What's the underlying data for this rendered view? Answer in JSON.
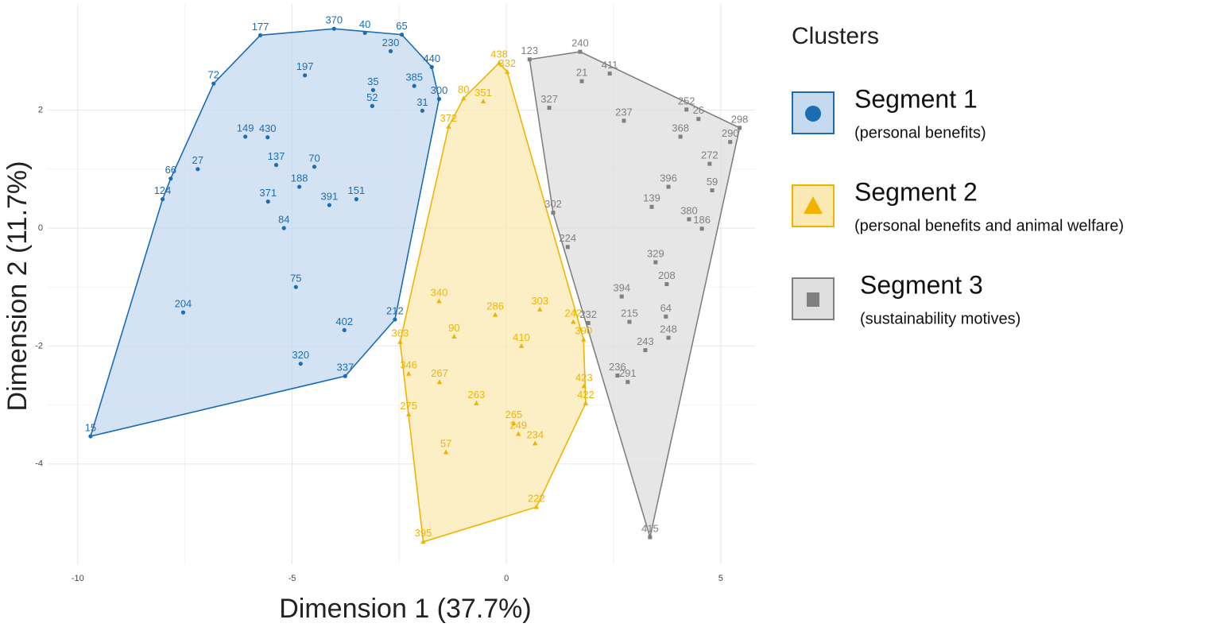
{
  "chart_data": {
    "type": "cluster-scatter",
    "x_label": "Dimension 1 (37.7%)",
    "y_label": "Dimension 2 (11.7%)",
    "legend_title": "Clusters",
    "xlim": [
      -10.7,
      5.8
    ],
    "ylim": [
      -5.7,
      3.8
    ],
    "xticks": [
      -10,
      -5,
      0,
      5
    ],
    "yticks": [
      -4,
      -2,
      0,
      2
    ],
    "grid": true,
    "series": [
      {
        "name": "Segment 1",
        "description": "(personal benefits)",
        "color": "#1a6db5",
        "fill": "#c6daef",
        "marker": "circle",
        "labels": [
          "15",
          "204",
          "124",
          "66",
          "27",
          "72",
          "177",
          "370",
          "40",
          "65",
          "230",
          "440",
          "197",
          "35",
          "149",
          "430",
          "137",
          "371",
          "188",
          "84",
          "391",
          "151",
          "75",
          "320",
          "337",
          "402",
          "385",
          "300",
          "31",
          "52",
          "70",
          "212"
        ],
        "x": [
          -9.7,
          -7.54,
          -8.02,
          -7.83,
          -7.2,
          -6.83,
          -5.74,
          -4.02,
          -3.3,
          -2.44,
          -2.7,
          -1.74,
          -4.7,
          -3.11,
          -6.09,
          -5.57,
          -5.37,
          -5.56,
          -4.83,
          -5.19,
          -4.13,
          -3.5,
          -4.91,
          -4.8,
          -3.76,
          -3.78,
          -2.15,
          -1.57,
          -1.96,
          -3.13,
          -4.48,
          -2.6
        ],
        "values": [
          -3.53,
          -1.43,
          0.49,
          0.84,
          1.0,
          2.45,
          3.27,
          3.38,
          3.31,
          3.28,
          3.0,
          2.73,
          2.59,
          2.34,
          1.55,
          1.54,
          1.07,
          0.45,
          0.7,
          0,
          0.39,
          0.49,
          -1.0,
          -2.3,
          -2.51,
          -1.73,
          2.41,
          2.19,
          1.99,
          2.07,
          1.04,
          -1.55
        ]
      },
      {
        "name": "Segment 2",
        "description": "(personal benefits and animal welfare)",
        "color": "#f0b400",
        "fill": "#fbe9b3",
        "marker": "triangle",
        "labels": [
          "395",
          "222",
          "234",
          "249",
          "265",
          "57",
          "275",
          "346",
          "363",
          "267",
          "263",
          "90",
          "340",
          "423",
          "422",
          "390",
          "242",
          "438",
          "332",
          "80",
          "351",
          "372",
          "303",
          "410",
          "286"
        ],
        "x": [
          -1.94,
          0.7,
          0.67,
          0.28,
          0.17,
          -1.41,
          -2.28,
          -2.28,
          -2.48,
          -1.56,
          -0.7,
          -1.22,
          -1.57,
          1.81,
          1.85,
          1.8,
          1.56,
          -0.17,
          0.02,
          -1.0,
          -0.54,
          -1.35,
          0.78,
          0.35,
          -0.26
        ],
        "values": [
          -5.32,
          -4.73,
          -3.65,
          -3.49,
          -3.31,
          -3.8,
          -3.16,
          -2.47,
          -1.93,
          -2.61,
          -2.97,
          -1.84,
          -1.24,
          -2.68,
          -2.97,
          -1.89,
          -1.59,
          2.8,
          2.65,
          2.2,
          2.15,
          1.72,
          -1.38,
          -2.0,
          -1.47
        ]
      },
      {
        "name": "Segment 3",
        "description": "(sustainability motives)",
        "color": "#808080",
        "fill": "#dedede",
        "marker": "square",
        "labels": [
          "240",
          "123",
          "411",
          "21",
          "252",
          "26",
          "298",
          "290",
          "272",
          "59",
          "186",
          "380",
          "139",
          "208",
          "64",
          "248",
          "215",
          "243",
          "236",
          "291",
          "415",
          "232",
          "394",
          "329",
          "237",
          "368",
          "396",
          "302",
          "224",
          "327"
        ],
        "x": [
          1.72,
          0.54,
          2.41,
          1.76,
          4.2,
          4.48,
          5.44,
          5.22,
          4.74,
          4.8,
          4.56,
          4.26,
          3.39,
          3.74,
          3.72,
          3.78,
          2.87,
          3.24,
          2.59,
          2.83,
          3.35,
          1.91,
          2.69,
          3.48,
          2.74,
          4.06,
          3.78,
          1.09,
          1.43,
          1.0
        ],
        "values": [
          2.99,
          2.86,
          2.62,
          2.49,
          2.01,
          1.85,
          1.7,
          1.46,
          1.09,
          0.64,
          -0.01,
          0.15,
          0.36,
          -0.95,
          -1.5,
          -1.86,
          -1.59,
          -2.07,
          -2.5,
          -2.61,
          -5.24,
          -1.61,
          -1.16,
          -0.58,
          1.82,
          1.55,
          0.7,
          0.26,
          -0.32,
          2.04
        ]
      }
    ]
  }
}
